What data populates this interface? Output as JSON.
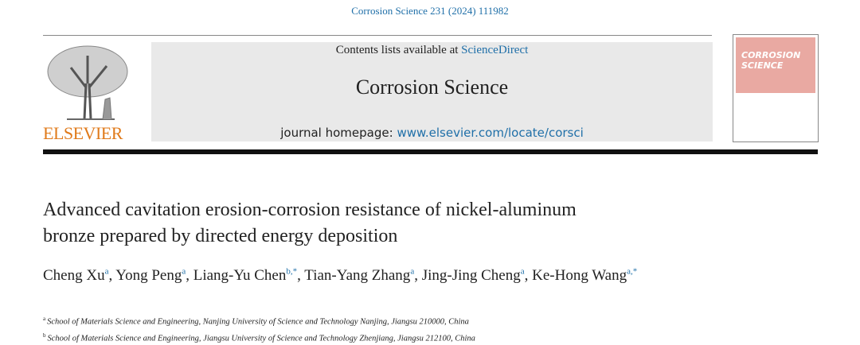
{
  "header": {
    "citation": "Corrosion Science 231 (2024) 111982",
    "publisher": "ELSEVIER",
    "contents_prefix": "Contents lists available at",
    "contents_link": "ScienceDirect",
    "journal": "Corrosion Science",
    "homepage_prefix": "journal homepage:",
    "homepage_link": "www.elsevier.com/locate/corsci",
    "cover_title": "CORROSION SCIENCE"
  },
  "article": {
    "title_lines": [
      "Advanced cavitation erosion-corrosion resistance of nickel-aluminum",
      "bronze prepared by directed energy deposition"
    ],
    "authors": [
      {
        "name": "Cheng Xu",
        "sup": "a"
      },
      {
        "name": "Yong Peng",
        "sup": "a"
      },
      {
        "name": "Liang-Yu Chen",
        "sup": "b,*"
      },
      {
        "name": "Tian-Yang Zhang",
        "sup": "a"
      },
      {
        "name": "Jing-Jing Cheng",
        "sup": "a"
      },
      {
        "name": "Ke-Hong Wang",
        "sup": "a,*"
      }
    ],
    "affiliations": [
      {
        "mark": "a",
        "text": "School of Materials Science and Engineering, Nanjing University of Science and Technology Nanjing, Jiangsu 210000, China"
      },
      {
        "mark": "b",
        "text": "School of Materials Science and Engineering, Jiangsu University of Science and Technology Zhenjiang, Jiangsu 212100, China"
      }
    ]
  }
}
